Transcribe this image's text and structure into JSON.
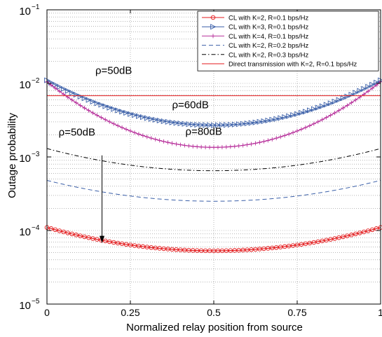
{
  "chart_data": {
    "type": "line",
    "title": "",
    "xlabel": "Normalized relay position from source",
    "ylabel": "Outage probability",
    "xlim": [
      0,
      1
    ],
    "ylim": [
      1e-05,
      0.1
    ],
    "y_scale": "log",
    "grid": true,
    "legend_position": "top-right",
    "x_ticks": [
      0,
      0.25,
      0.5,
      0.75,
      1
    ],
    "x_tick_labels": [
      "0",
      "0.25",
      "0.5",
      "0.75",
      "1"
    ],
    "y_ticks": [
      1e-05,
      0.0001,
      0.001,
      0.01,
      0.1
    ],
    "y_tick_labels": [
      {
        "base": "10",
        "exp": "−5"
      },
      {
        "base": "10",
        "exp": "−4"
      },
      {
        "base": "10",
        "exp": "−3"
      },
      {
        "base": "10",
        "exp": "−2"
      },
      {
        "base": "10",
        "exp": "−1"
      }
    ],
    "series": [
      {
        "name": "CL with K=2, R=0.1 bps/Hz",
        "color": "#e41a1c",
        "style": "solid",
        "marker": "circle",
        "profile": {
          "edge": 0.00011,
          "center": 5.3e-05
        }
      },
      {
        "name": "CL with K=3, R=0.1 bps/Hz",
        "color": "#3a5fa8",
        "style": "solid",
        "marker": "triangle-right",
        "profile": {
          "edge": 0.011,
          "center": 0.0027
        }
      },
      {
        "name": "CL with K=4, R=0.1 bps/Hz",
        "color": "#b8329c",
        "style": "solid",
        "marker": "plus",
        "profile": {
          "edge": 0.0105,
          "center": 0.00135
        }
      },
      {
        "name": "CL with K=2, R=0.2 bps/Hz",
        "color": "#3a5fa8",
        "style": "dashed",
        "marker": "none",
        "profile": {
          "edge": 0.00048,
          "center": 0.00025
        }
      },
      {
        "name": "CL with K=2, R=0.3 bps/Hz",
        "color": "#000000",
        "style": "dashdot",
        "marker": "none",
        "profile": {
          "edge": 0.0013,
          "center": 0.00065
        }
      },
      {
        "name": "Direct transmission with K=2, R=0.1 bps/Hz",
        "color": "#e41a1c",
        "style": "solid",
        "marker": "none",
        "profile": {
          "edge": 0.0068,
          "center": 0.0068
        }
      }
    ],
    "annotations": [
      {
        "text": "ρ=50dB",
        "x": 0.145,
        "y": 0.0135
      },
      {
        "text": "ρ=60dB",
        "x": 0.375,
        "y": 0.0046
      },
      {
        "text": "ρ=80dB",
        "x": 0.415,
        "y": 0.002
      },
      {
        "text": "ρ=50dB",
        "x": 0.035,
        "y": 0.00195
      }
    ],
    "arrow": {
      "x": 0.165,
      "y_from": 0.00105,
      "y_to": 6.8e-05
    }
  }
}
